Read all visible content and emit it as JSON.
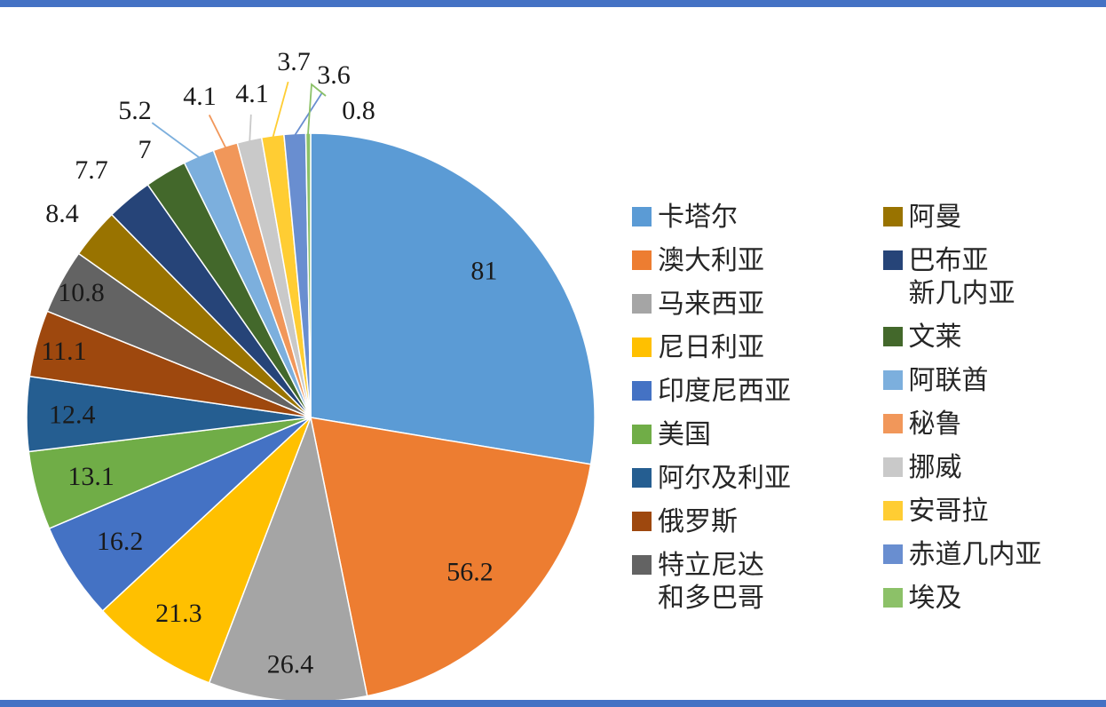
{
  "page": {
    "background": "#ffffff",
    "top_bar_color": "#4472C4",
    "bottom_bar_color": "#4472C4"
  },
  "chart_data": {
    "type": "pie",
    "title": "",
    "start_angle_deg": 0,
    "direction": "clockwise",
    "legend_position": "right",
    "legend_columns": 2,
    "data_labels": "values",
    "slices": [
      {
        "label": "卡塔尔",
        "value": 81,
        "color": "#5B9BD5"
      },
      {
        "label": "澳大利亚",
        "value": 56.2,
        "color": "#ED7D31"
      },
      {
        "label": "马来西亚",
        "value": 26.4,
        "color": "#A5A5A5"
      },
      {
        "label": "尼日利亚",
        "value": 21.3,
        "color": "#FFC000"
      },
      {
        "label": "印度尼西亚",
        "value": 16.2,
        "color": "#4472C4"
      },
      {
        "label": "美国",
        "value": 13.1,
        "color": "#70AD47"
      },
      {
        "label": "阿尔及利亚",
        "value": 12.4,
        "color": "#255E91"
      },
      {
        "label": "俄罗斯",
        "value": 11.1,
        "color": "#9E480E"
      },
      {
        "label": "特立尼达和多巴哥",
        "value": 10.8,
        "color": "#636363",
        "legend_label": "特立尼达\n和多巴哥"
      },
      {
        "label": "阿曼",
        "value": 8.4,
        "color": "#997300"
      },
      {
        "label": "巴布亚新几内亚",
        "value": 7.7,
        "color": "#264478",
        "legend_label": "巴布亚\n新几内亚"
      },
      {
        "label": "文莱",
        "value": 7,
        "color": "#43682B"
      },
      {
        "label": "阿联酋",
        "value": 5.2,
        "color": "#7CAFDD"
      },
      {
        "label": "秘鲁",
        "value": 4.1,
        "color": "#F1975A"
      },
      {
        "label": "挪威",
        "value": 4.1,
        "color": "#C9C9C9"
      },
      {
        "label": "安哥拉",
        "value": 3.7,
        "color": "#FFCD33"
      },
      {
        "label": "赤道几内亚",
        "value": 3.6,
        "color": "#698ED0"
      },
      {
        "label": "埃及",
        "value": 0.8,
        "color": "#8CC168"
      }
    ]
  }
}
